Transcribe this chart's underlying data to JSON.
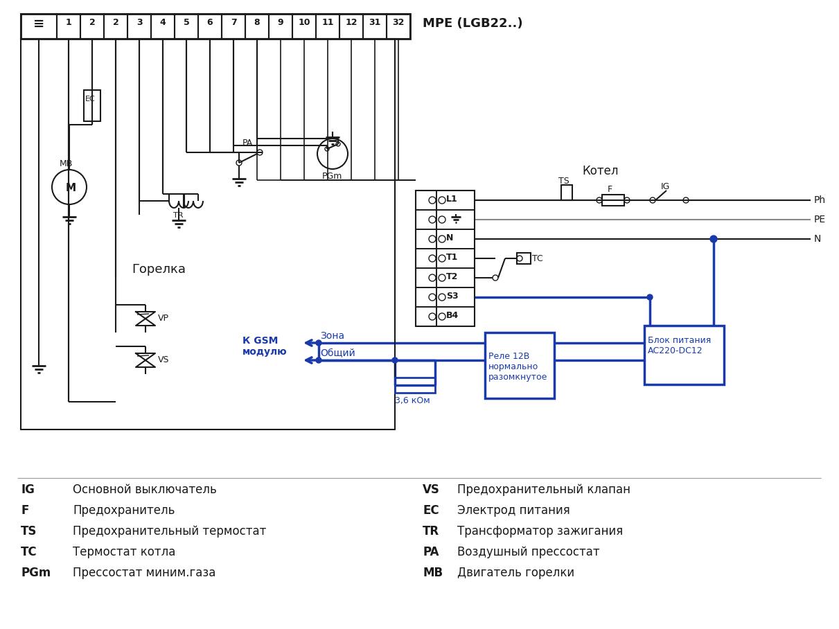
{
  "bg_color": "#ffffff",
  "black": "#1a1a1a",
  "blue": "#1a3aaa",
  "gray": "#888888",
  "legend_items_left": [
    [
      "IG",
      "Основной выключатель"
    ],
    [
      "F",
      "Предохранитель"
    ],
    [
      "TS",
      "Предохранительный термостат"
    ],
    [
      "TC",
      "Термостат котла"
    ],
    [
      "PGm",
      "Прессостат миним.газа"
    ]
  ],
  "legend_items_right": [
    [
      "VS",
      "Предохранительный клапан"
    ],
    [
      "EC",
      "Электрод питания"
    ],
    [
      "TR",
      "Трансформатор зажигания"
    ],
    [
      "PA",
      "Воздушный прессостат"
    ],
    [
      "MB",
      "Двигатель горелки"
    ]
  ],
  "mpe_label": "МРЕ (LGB22..)",
  "terminal_labels": [
    "≡",
    "1",
    "2",
    "2",
    "3",
    "4",
    "5",
    "6",
    "7",
    "8",
    "9",
    "10",
    "11",
    "12",
    "31",
    "32"
  ],
  "kotel_label": "Котел",
  "gorelka_label": "Горелка",
  "k_gsm_label": "К GSM\nмодулю",
  "zona_label": "Зона",
  "obschiy_label": "Общий",
  "relay_label": "Реле 12В\nнормально\nразомкнутое",
  "resistor_label": "3,6 кОм",
  "blok_label": "Блок питания\nАС220-DC12",
  "line_labels_right": [
    "Ph",
    "PE",
    "N"
  ],
  "terminal_row_labels": [
    "L1",
    "▼",
    "N",
    "T1",
    "T2",
    "S3",
    "B4"
  ]
}
